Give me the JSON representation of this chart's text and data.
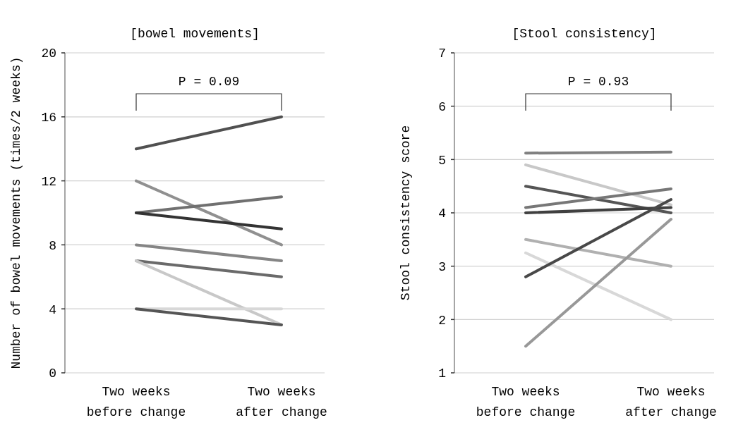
{
  "chart_data": [
    {
      "type": "line",
      "title": "[bowel movements]",
      "ylabel": "Number of bowel movements (times/2 weeks)",
      "categories": [
        "Two weeks before change",
        "Two weeks after change"
      ],
      "ylim": [
        0,
        20
      ],
      "yticks": [
        0,
        4,
        8,
        12,
        16,
        20
      ],
      "grid": "y",
      "annotations": [
        "P = 0.09"
      ],
      "series": [
        {
          "color": "#505050",
          "values": [
            14,
            16
          ]
        },
        {
          "color": "#909090",
          "values": [
            12,
            8
          ]
        },
        {
          "color": "#707070",
          "values": [
            10,
            11
          ]
        },
        {
          "color": "#333333",
          "values": [
            10,
            9
          ]
        },
        {
          "color": "#858585",
          "values": [
            8,
            7
          ]
        },
        {
          "color": "#6a6a6a",
          "values": [
            7,
            6
          ]
        },
        {
          "color": "#c8c8c8",
          "values": [
            7,
            3
          ]
        },
        {
          "color": "#d8d8d8",
          "values": [
            4,
            4
          ]
        },
        {
          "color": "#555555",
          "values": [
            4,
            3
          ]
        }
      ]
    },
    {
      "type": "line",
      "title": "[Stool consistency]",
      "ylabel": "Stool consistency score",
      "categories": [
        "Two weeks before change",
        "Two weeks after change"
      ],
      "ylim": [
        1,
        7
      ],
      "yticks": [
        1,
        2,
        3,
        4,
        5,
        6,
        7
      ],
      "grid": "y",
      "annotations": [
        "P = 0.93"
      ],
      "series": [
        {
          "color": "#808080",
          "values": [
            5.12,
            5.14
          ]
        },
        {
          "color": "#c8c8c8",
          "values": [
            4.9,
            4.15
          ]
        },
        {
          "color": "#555555",
          "values": [
            4.5,
            4.0
          ]
        },
        {
          "color": "#777777",
          "values": [
            4.1,
            4.45
          ]
        },
        {
          "color": "#404040",
          "values": [
            4.0,
            4.1
          ]
        },
        {
          "color": "#b0b0b0",
          "values": [
            3.5,
            3.0
          ]
        },
        {
          "color": "#d8d8d8",
          "values": [
            3.25,
            2.0
          ]
        },
        {
          "color": "#484848",
          "values": [
            2.8,
            4.25
          ]
        },
        {
          "color": "#989898",
          "values": [
            1.5,
            3.88
          ]
        }
      ]
    }
  ]
}
